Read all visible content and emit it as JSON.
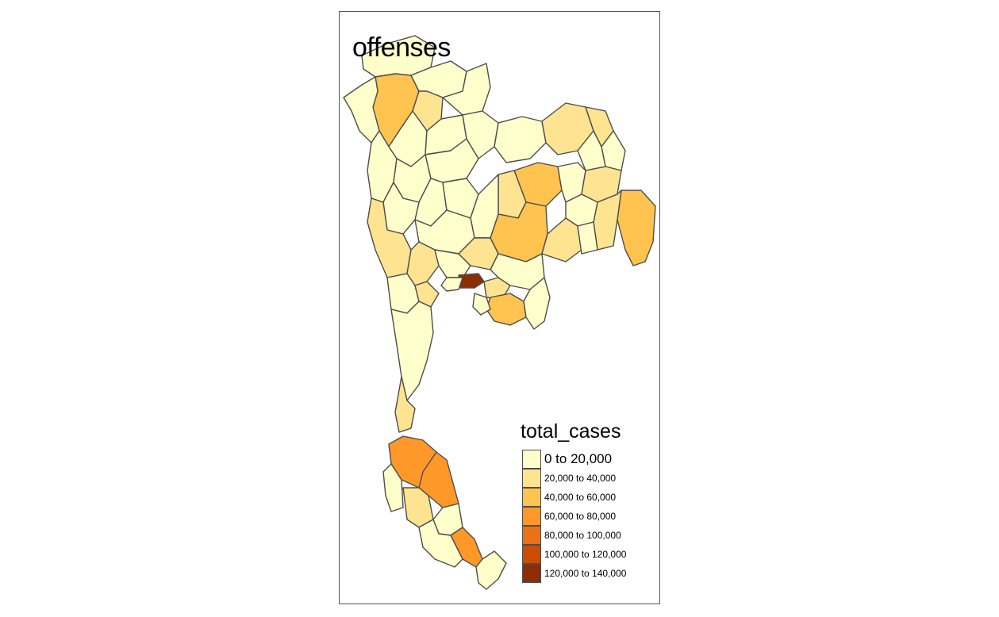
{
  "map": {
    "title": "offenses",
    "variable": "total_cases"
  },
  "legend": {
    "title": "total_cases",
    "items": [
      {
        "label": "0 to 20,000",
        "color": "#FFFFCC"
      },
      {
        "label": "20,000 to 40,000",
        "color": "#FEE391"
      },
      {
        "label": "40,000 to 60,000",
        "color": "#FEC44F"
      },
      {
        "label": "60,000 to 80,000",
        "color": "#FE9929"
      },
      {
        "label": "80,000 to 100,000",
        "color": "#EC7014"
      },
      {
        "label": "100,000 to 120,000",
        "color": "#CC4C02"
      },
      {
        "label": "120,000 to 140,000",
        "color": "#8C2D04"
      }
    ]
  },
  "colors": {
    "frame_border": "#555555",
    "province_border": "#4d4d4d"
  }
}
